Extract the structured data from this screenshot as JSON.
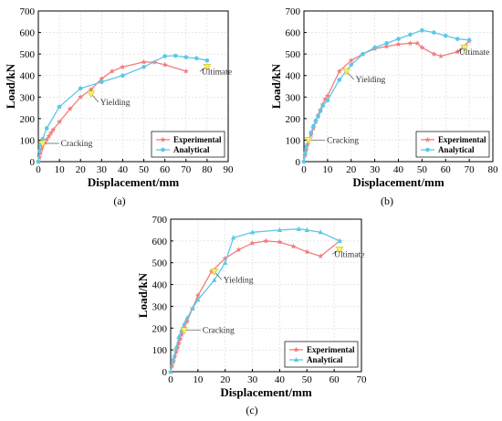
{
  "colors": {
    "experimental": "#f47c7c",
    "analytical": "#5bc8e8",
    "annotation_marker": "#f2ee6e",
    "grid": "#d9d9d9"
  },
  "chart_data": [
    {
      "type": "line",
      "panel_label": "(a)",
      "xlabel": "Displacement/mm",
      "ylabel": "Load/kN",
      "xlim": [
        0,
        90
      ],
      "ylim": [
        0,
        700
      ],
      "xticks": [
        "0",
        "10",
        "20",
        "30",
        "40",
        "50",
        "60",
        "70",
        "80",
        "90"
      ],
      "yticks": [
        "0",
        "100",
        "200",
        "300",
        "400",
        "500",
        "600",
        "700"
      ],
      "grid": true,
      "legend_position": "bottom-right",
      "series": [
        {
          "name": "Experimental",
          "marker": "star",
          "x": [
            0,
            0.5,
            1,
            1.5,
            2,
            3,
            4,
            5,
            6,
            7,
            10,
            15,
            20,
            25,
            30,
            35,
            40,
            50,
            55,
            60,
            70
          ],
          "y": [
            0,
            20,
            40,
            58,
            73,
            88,
            102,
            118,
            133,
            148,
            185,
            245,
            300,
            335,
            385,
            420,
            440,
            463,
            462,
            450,
            420
          ]
        },
        {
          "name": "Analytical",
          "marker": "circle",
          "x": [
            0,
            0.5,
            1,
            2,
            4,
            10,
            20,
            30,
            40,
            50,
            60,
            65,
            70,
            75,
            80
          ],
          "y": [
            0,
            50,
            80,
            105,
            155,
            255,
            340,
            370,
            400,
            440,
            490,
            492,
            485,
            480,
            470
          ]
        }
      ],
      "annotations": [
        {
          "label": "Cracking",
          "x": 2,
          "y": 85
        },
        {
          "label": "Yielding",
          "x": 25,
          "y": 315
        },
        {
          "label": "Ultimate",
          "x": 80,
          "y": 440
        }
      ]
    },
    {
      "type": "line",
      "panel_label": "(b)",
      "xlabel": "Displacement/mm",
      "ylabel": "Load/kN",
      "xlim": [
        0,
        80
      ],
      "ylim": [
        0,
        700
      ],
      "xticks": [
        "0",
        "10",
        "20",
        "30",
        "40",
        "50",
        "60",
        "70",
        "80"
      ],
      "yticks": [
        "0",
        "100",
        "200",
        "300",
        "400",
        "500",
        "600",
        "700"
      ],
      "grid": true,
      "legend_position": "bottom-right",
      "series": [
        {
          "name": "Experimental",
          "marker": "star",
          "x": [
            0,
            0.5,
            1,
            1.5,
            2,
            3,
            4,
            5,
            6,
            7,
            8,
            9,
            10,
            15,
            20,
            25,
            30,
            35,
            40,
            45,
            48,
            50,
            55,
            58,
            65,
            70
          ],
          "y": [
            0,
            30,
            55,
            80,
            100,
            125,
            155,
            185,
            215,
            240,
            265,
            290,
            305,
            420,
            470,
            500,
            525,
            535,
            545,
            550,
            550,
            530,
            500,
            490,
            510,
            560
          ]
        },
        {
          "name": "Analytical",
          "marker": "circle",
          "x": [
            0,
            0.5,
            1,
            2,
            3,
            4,
            5,
            6,
            7,
            8,
            10,
            15,
            20,
            25,
            30,
            35,
            40,
            45,
            50,
            55,
            60,
            65,
            70
          ],
          "y": [
            0,
            40,
            70,
            100,
            135,
            165,
            190,
            210,
            235,
            260,
            285,
            380,
            450,
            500,
            530,
            550,
            570,
            590,
            610,
            600,
            585,
            570,
            565
          ]
        }
      ],
      "annotations": [
        {
          "label": "Cracking",
          "x": 2,
          "y": 100
        },
        {
          "label": "Yielding",
          "x": 18,
          "y": 420
        },
        {
          "label": "Ultimate",
          "x": 68,
          "y": 530
        }
      ]
    },
    {
      "type": "line",
      "panel_label": "(c)",
      "xlabel": "Displacement/mm",
      "ylabel": "Load/kN",
      "xlim": [
        0,
        70
      ],
      "ylim": [
        0,
        700
      ],
      "xticks": [
        "0",
        "10",
        "20",
        "30",
        "40",
        "50",
        "60",
        "70"
      ],
      "yticks": [
        "0",
        "100",
        "200",
        "300",
        "400",
        "500",
        "600",
        "700"
      ],
      "grid": true,
      "legend_position": "bottom-right",
      "series": [
        {
          "name": "Experimental",
          "marker": "star",
          "x": [
            0,
            0.5,
            1,
            1.5,
            2,
            2.5,
            3,
            3.5,
            4,
            5,
            6,
            8,
            10,
            15,
            20,
            25,
            30,
            35,
            40,
            45,
            50,
            55,
            62
          ],
          "y": [
            0,
            25,
            45,
            70,
            90,
            110,
            130,
            150,
            170,
            200,
            230,
            290,
            350,
            460,
            520,
            560,
            590,
            600,
            595,
            575,
            550,
            530,
            600
          ]
        },
        {
          "name": "Analytical",
          "marker": "triangle",
          "x": [
            0,
            1,
            2,
            3,
            4,
            5,
            6,
            8,
            10,
            16,
            20,
            23,
            30,
            40,
            47,
            50,
            55,
            62
          ],
          "y": [
            0,
            60,
            110,
            160,
            190,
            220,
            245,
            290,
            330,
            420,
            500,
            615,
            640,
            650,
            655,
            650,
            640,
            600
          ]
        }
      ],
      "annotations": [
        {
          "label": "Cracking",
          "x": 5,
          "y": 190
        },
        {
          "label": "Yielding",
          "x": 16,
          "y": 460
        },
        {
          "label": "Ultimate",
          "x": 62,
          "y": 560
        }
      ]
    }
  ]
}
